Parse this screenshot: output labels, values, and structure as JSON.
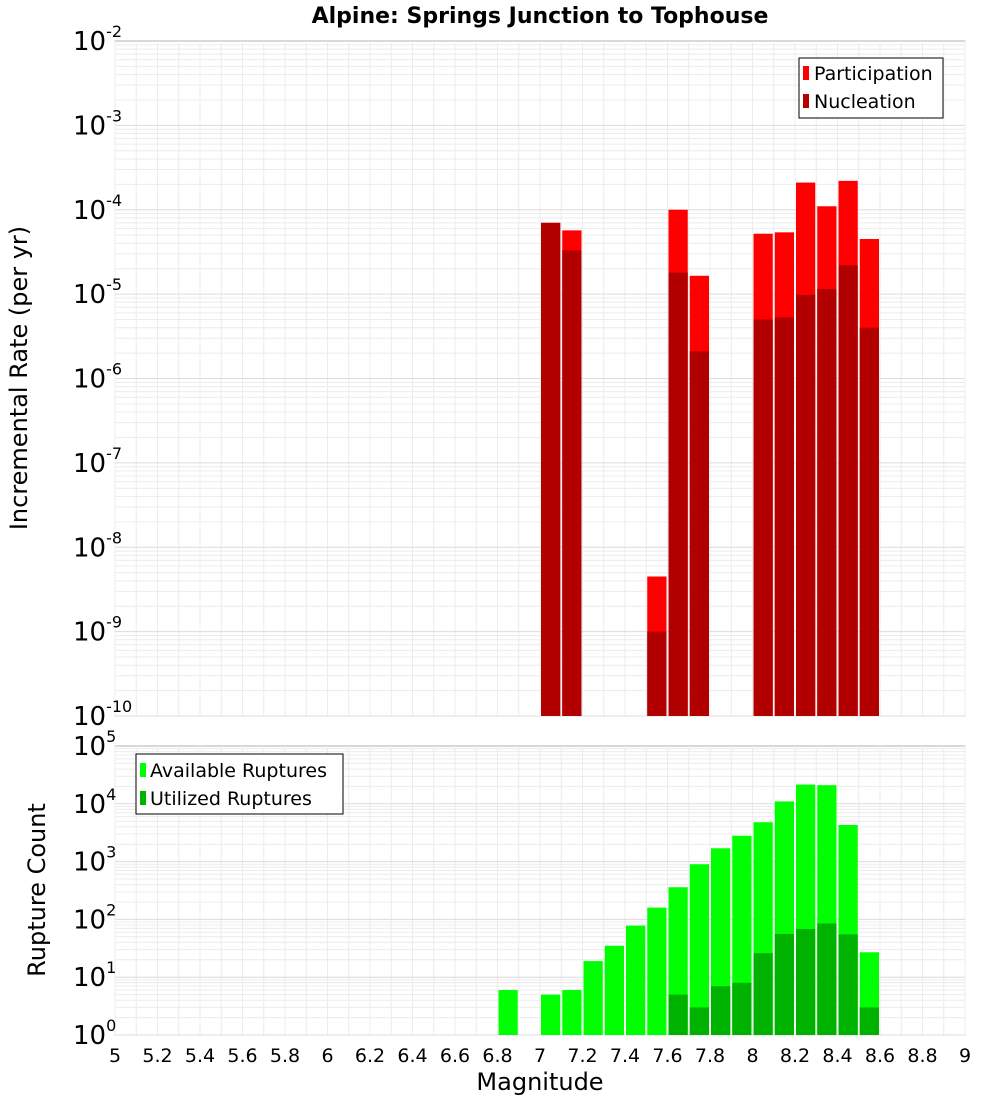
{
  "chart_data": [
    {
      "type": "bar",
      "title": "Alpine: Springs Junction to Tophouse",
      "xlabel": "",
      "ylabel": "Incremental Rate (per yr)",
      "yscale": "log",
      "xlim": [
        5,
        9
      ],
      "ylim": [
        1e-10,
        0.01
      ],
      "y_ticks": [
        {
          "base": "10",
          "exp": "-10",
          "value": 1e-10
        },
        {
          "base": "10",
          "exp": "-9",
          "value": 1e-09
        },
        {
          "base": "10",
          "exp": "-8",
          "value": 1e-08
        },
        {
          "base": "10",
          "exp": "-7",
          "value": 1e-07
        },
        {
          "base": "10",
          "exp": "-6",
          "value": 1e-06
        },
        {
          "base": "10",
          "exp": "-5",
          "value": 1e-05
        },
        {
          "base": "10",
          "exp": "-4",
          "value": 0.0001
        },
        {
          "base": "10",
          "exp": "-3",
          "value": 0.001
        },
        {
          "base": "10",
          "exp": "-2",
          "value": 0.01
        }
      ],
      "legend_position": "top-right",
      "series": [
        {
          "name": "Participation",
          "color": "#ff0000",
          "points": [
            {
              "x": 7.05,
              "y": 7e-05
            },
            {
              "x": 7.15,
              "y": 5.7e-05
            },
            {
              "x": 7.55,
              "y": 4.5e-09
            },
            {
              "x": 7.65,
              "y": 0.0001
            },
            {
              "x": 7.75,
              "y": 1.65e-05
            },
            {
              "x": 8.05,
              "y": 5.2e-05
            },
            {
              "x": 8.15,
              "y": 5.4e-05
            },
            {
              "x": 8.25,
              "y": 0.00021
            },
            {
              "x": 8.35,
              "y": 0.00011
            },
            {
              "x": 8.45,
              "y": 0.00022
            },
            {
              "x": 8.55,
              "y": 4.5e-05
            }
          ]
        },
        {
          "name": "Nucleation",
          "color": "#b20000",
          "points": [
            {
              "x": 7.05,
              "y": 7e-05
            },
            {
              "x": 7.15,
              "y": 3.3e-05
            },
            {
              "x": 7.55,
              "y": 1e-09
            },
            {
              "x": 7.65,
              "y": 1.8e-05
            },
            {
              "x": 7.75,
              "y": 2.1e-06
            },
            {
              "x": 8.05,
              "y": 5e-06
            },
            {
              "x": 8.15,
              "y": 5.3e-06
            },
            {
              "x": 8.25,
              "y": 9.8e-06
            },
            {
              "x": 8.35,
              "y": 1.15e-05
            },
            {
              "x": 8.45,
              "y": 2.2e-05
            },
            {
              "x": 8.55,
              "y": 4e-06
            }
          ]
        }
      ]
    },
    {
      "type": "bar",
      "title": "",
      "xlabel": "Magnitude",
      "ylabel": "Rupture Count",
      "yscale": "log",
      "xlim": [
        5,
        9
      ],
      "ylim": [
        1,
        100000.0
      ],
      "x_ticks": [
        "5",
        "5.2",
        "5.4",
        "5.6",
        "5.8",
        "6",
        "6.2",
        "6.4",
        "6.6",
        "6.8",
        "7",
        "7.2",
        "7.4",
        "7.6",
        "7.8",
        "8",
        "8.2",
        "8.4",
        "8.6",
        "8.8",
        "9"
      ],
      "y_ticks": [
        {
          "base": "10",
          "exp": "0",
          "value": 1
        },
        {
          "base": "10",
          "exp": "1",
          "value": 10
        },
        {
          "base": "10",
          "exp": "2",
          "value": 100
        },
        {
          "base": "10",
          "exp": "3",
          "value": 1000
        },
        {
          "base": "10",
          "exp": "4",
          "value": 10000
        },
        {
          "base": "10",
          "exp": "5",
          "value": 100000
        }
      ],
      "legend_position": "top-left",
      "series": [
        {
          "name": "Available Ruptures",
          "color": "#00ff00",
          "points": [
            {
              "x": 6.85,
              "y": 6
            },
            {
              "x": 7.05,
              "y": 5
            },
            {
              "x": 7.15,
              "y": 6
            },
            {
              "x": 7.25,
              "y": 19
            },
            {
              "x": 7.35,
              "y": 35
            },
            {
              "x": 7.45,
              "y": 78
            },
            {
              "x": 7.55,
              "y": 160
            },
            {
              "x": 7.65,
              "y": 360
            },
            {
              "x": 7.75,
              "y": 900
            },
            {
              "x": 7.85,
              "y": 1700
            },
            {
              "x": 7.95,
              "y": 2800
            },
            {
              "x": 8.05,
              "y": 4800
            },
            {
              "x": 8.15,
              "y": 11000
            },
            {
              "x": 8.25,
              "y": 21500
            },
            {
              "x": 8.35,
              "y": 21000
            },
            {
              "x": 8.45,
              "y": 4300
            },
            {
              "x": 8.55,
              "y": 27
            }
          ]
        },
        {
          "name": "Utilized Ruptures",
          "color": "#00b200",
          "points": [
            {
              "x": 7.05,
              "y": 1
            },
            {
              "x": 7.15,
              "y": 1
            },
            {
              "x": 7.35,
              "y": 1
            },
            {
              "x": 7.45,
              "y": 1
            },
            {
              "x": 7.55,
              "y": 1
            },
            {
              "x": 7.65,
              "y": 5
            },
            {
              "x": 7.75,
              "y": 3
            },
            {
              "x": 7.85,
              "y": 7
            },
            {
              "x": 7.95,
              "y": 8
            },
            {
              "x": 8.05,
              "y": 26
            },
            {
              "x": 8.15,
              "y": 56
            },
            {
              "x": 8.25,
              "y": 68
            },
            {
              "x": 8.35,
              "y": 85
            },
            {
              "x": 8.45,
              "y": 55
            },
            {
              "x": 8.55,
              "y": 3
            }
          ]
        }
      ]
    }
  ]
}
